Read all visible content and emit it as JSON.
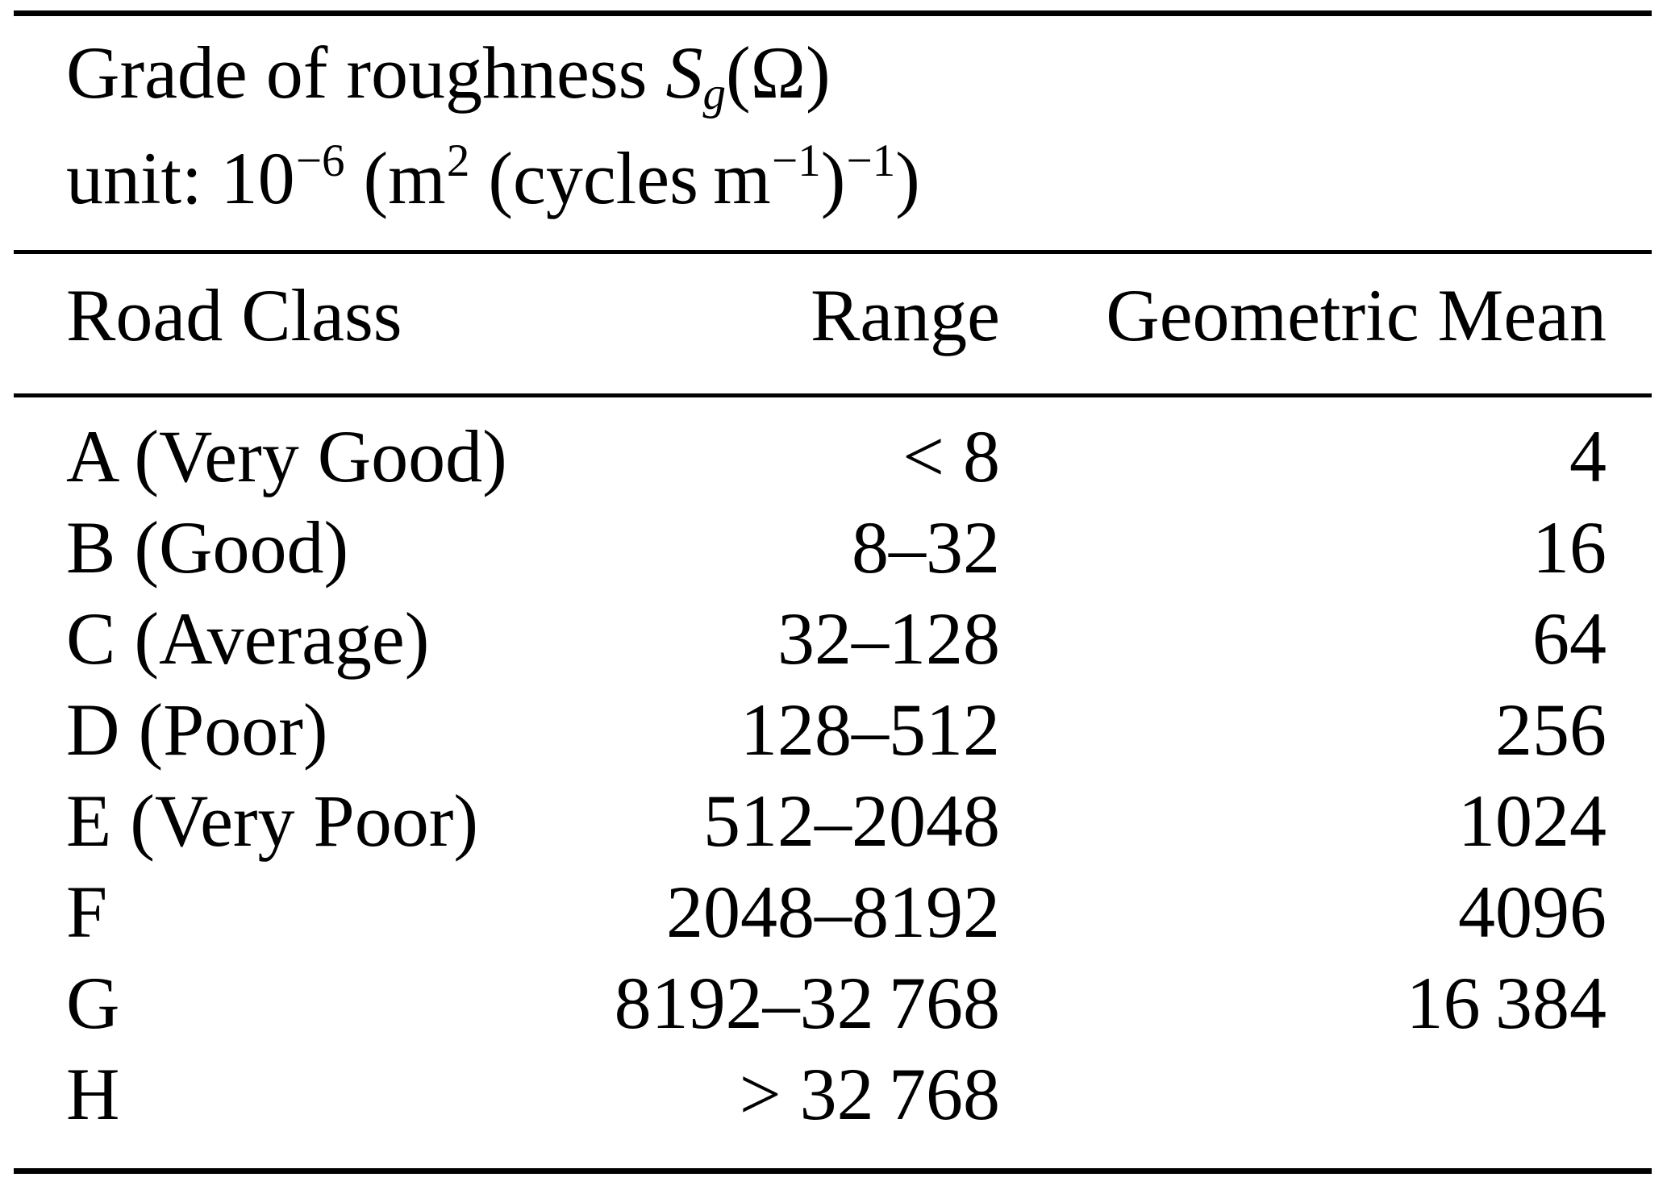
{
  "caption": {
    "line1": {
      "prefix": "Grade of roughness ",
      "symbol": "S",
      "subscript": "g",
      "suffix": "(Ω)"
    },
    "line2": {
      "prefix": "unit: 10",
      "exp1": "−6",
      "mid1": " (m",
      "exp2": "2",
      "mid2": " (cycles m",
      "exp3": "−1",
      "mid3": ")",
      "exp4": "−1",
      "suffix": ")"
    }
  },
  "table": {
    "columns": [
      "Road Class",
      "Range",
      "Geometric Mean"
    ],
    "rows": [
      {
        "road_class": "A (Very Good)",
        "range": "< 8",
        "geometric_mean": "4"
      },
      {
        "road_class": "B (Good)",
        "range": "8–32",
        "geometric_mean": "16"
      },
      {
        "road_class": "C (Average)",
        "range": "32–128",
        "geometric_mean": "64"
      },
      {
        "road_class": "D (Poor)",
        "range": "128–512",
        "geometric_mean": "256"
      },
      {
        "road_class": "E (Very Poor)",
        "range": "512–2048",
        "geometric_mean": "1024"
      },
      {
        "road_class": "F",
        "range": "2048–8192",
        "geometric_mean": "4096"
      },
      {
        "road_class": "G",
        "range": "8192–32 768",
        "geometric_mean": "16 384"
      },
      {
        "road_class": "H",
        "range": "> 32 768",
        "geometric_mean": ""
      }
    ]
  }
}
